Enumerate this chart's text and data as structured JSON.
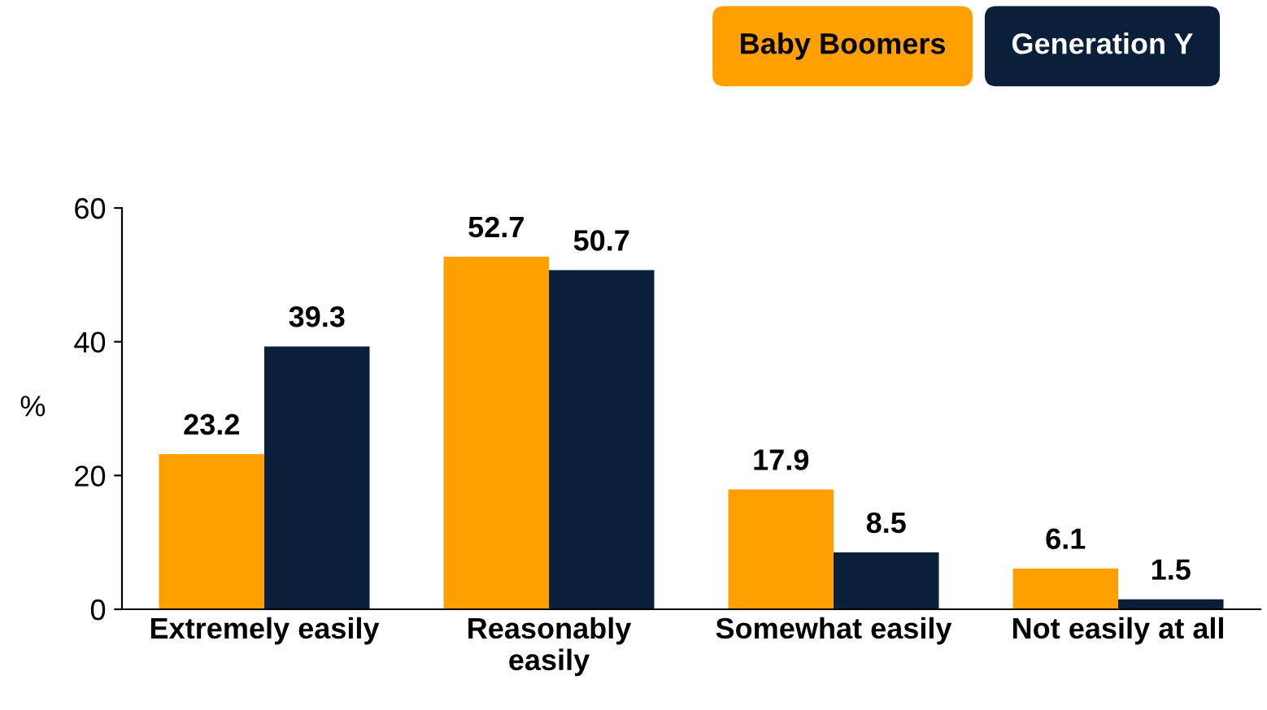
{
  "chart_data": {
    "type": "bar",
    "ylabel": "%",
    "categories": [
      "Extremely easily",
      "Reasonably\neasily",
      "Somewhat easily",
      "Not easily at all"
    ],
    "series": [
      {
        "name": "Baby Boomers",
        "color": "#ff9f00",
        "values": [
          23.2,
          52.7,
          17.9,
          6.1
        ]
      },
      {
        "name": "Generation Y",
        "color": "#0a1f3a",
        "values": [
          39.3,
          50.7,
          8.5,
          1.5
        ]
      }
    ],
    "ylim": [
      0,
      60
    ],
    "yticks": [
      0,
      20,
      40,
      60
    ],
    "grid": false,
    "legend": "top right",
    "data_labels": true
  }
}
